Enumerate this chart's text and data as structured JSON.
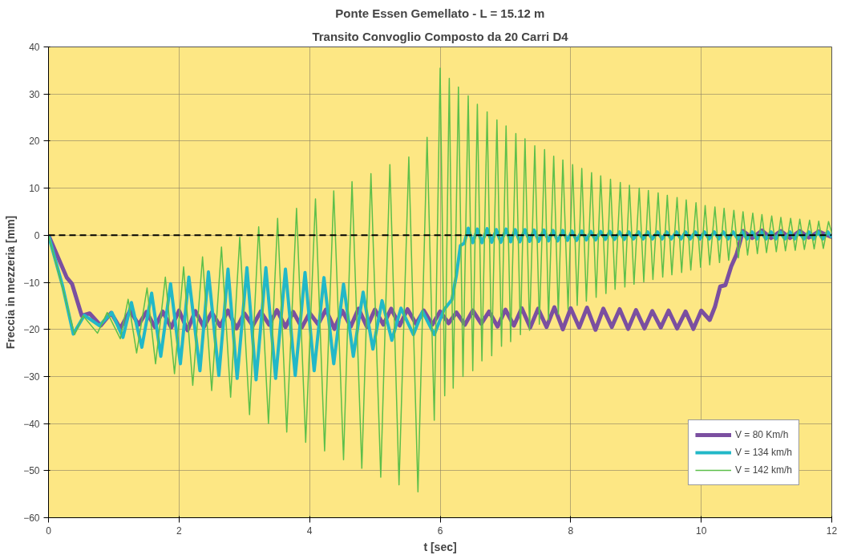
{
  "chart_data": {
    "type": "line",
    "title": "Ponte Essen Gemellato - L = 15.12 m",
    "subtitle": "Transito Convoglio Composto da 20 Carri D4",
    "xlabel": "t [sec]",
    "ylabel": "Freccia in mezzeria [mm]",
    "xlim": [
      0,
      12
    ],
    "ylim": [
      -60,
      40
    ],
    "xticks": [
      0,
      2,
      4,
      6,
      8,
      10,
      12
    ],
    "yticks": [
      -60,
      -50,
      -40,
      -30,
      -20,
      -10,
      0,
      10,
      20,
      30,
      40
    ],
    "grid": true,
    "legend": "bottom right",
    "line_style": "solid",
    "marker": "none",
    "ref_lines": [
      {
        "axis": "y",
        "value": 0,
        "label": null,
        "color": "#000000",
        "line_style": "dashed"
      }
    ],
    "series": [
      {
        "name": "V = 80 Km/h",
        "color": "#7b4fa0",
        "x": [
          0,
          0.28,
          0.36,
          0.51,
          0.63,
          0.8,
          0.96,
          1.1,
          1.25,
          1.38,
          1.5,
          1.63,
          1.75,
          1.88,
          2.0,
          2.13,
          2.25,
          2.38,
          2.5,
          2.63,
          2.75,
          2.88,
          3.0,
          3.13,
          3.25,
          3.38,
          3.5,
          3.63,
          3.75,
          3.88,
          4.0,
          4.13,
          4.25,
          4.38,
          4.5,
          4.63,
          4.75,
          4.88,
          5.0,
          5.13,
          5.25,
          5.38,
          5.5,
          5.63,
          5.75,
          5.88,
          6.0,
          6.13,
          6.25,
          6.38,
          6.5,
          6.63,
          6.75,
          6.88,
          7.0,
          7.13,
          7.25,
          7.38,
          7.5,
          7.63,
          7.75,
          7.88,
          8.0,
          8.13,
          8.25,
          8.38,
          8.5,
          8.63,
          8.75,
          8.88,
          9.0,
          9.13,
          9.25,
          9.38,
          9.5,
          9.63,
          9.76,
          9.88,
          10.0,
          10.13,
          10.21,
          10.29,
          10.37,
          10.46,
          10.54,
          10.64,
          10.78,
          10.93,
          11.07,
          11.22,
          11.36,
          11.51,
          11.65,
          11.8,
          12.0
        ],
        "values": [
          0,
          -9.0,
          -10.3,
          -17.1,
          -16.6,
          -19.2,
          -16.5,
          -19.8,
          -16.0,
          -19.0,
          -16.3,
          -19.5,
          -16.2,
          -19.6,
          -16.0,
          -20.2,
          -16.1,
          -19.5,
          -16.4,
          -19.3,
          -16.0,
          -19.8,
          -16.6,
          -19.2,
          -16.2,
          -19.0,
          -15.9,
          -19.5,
          -16.3,
          -19.6,
          -16.5,
          -18.9,
          -15.8,
          -19.9,
          -16.0,
          -19.4,
          -15.6,
          -19.5,
          -15.8,
          -19.0,
          -15.6,
          -19.2,
          -15.7,
          -18.8,
          -16.0,
          -19.0,
          -16.2,
          -18.7,
          -16.4,
          -19.0,
          -16.0,
          -18.8,
          -16.2,
          -19.4,
          -15.8,
          -19.2,
          -15.5,
          -19.6,
          -15.6,
          -19.5,
          -15.3,
          -20.0,
          -15.5,
          -19.6,
          -15.4,
          -20.1,
          -15.6,
          -19.5,
          -15.7,
          -19.9,
          -15.9,
          -19.8,
          -16.1,
          -19.6,
          -16.0,
          -19.8,
          -16.2,
          -19.9,
          -16.0,
          -18.0,
          -15.2,
          -10.9,
          -10.6,
          -6.6,
          -4.1,
          0.9,
          -0.6,
          1.0,
          -0.6,
          0.9,
          -0.6,
          0.9,
          -0.5,
          0.8,
          -0.4
        ]
      },
      {
        "name": "V = 134 km/h",
        "color": "#22b8c8",
        "x": [
          0,
          0.22,
          0.38,
          0.55,
          0.78,
          0.97,
          1.14,
          1.27,
          1.43,
          1.58,
          1.72,
          1.87,
          2.02,
          2.15,
          2.32,
          2.45,
          2.61,
          2.75,
          2.89,
          3.04,
          3.18,
          3.33,
          3.48,
          3.63,
          3.78,
          3.93,
          4.07,
          4.22,
          4.37,
          4.52,
          4.67,
          4.82,
          4.97,
          5.11,
          5.26,
          5.4,
          5.59,
          5.73,
          5.91,
          6.06,
          6.18,
          6.25,
          6.31,
          6.37,
          6.43,
          6.5,
          6.57,
          6.64,
          6.72,
          6.79,
          6.86,
          6.93,
          7.01,
          7.08,
          7.15,
          7.22,
          7.3,
          7.37,
          7.44,
          7.51,
          7.59,
          7.66,
          7.73,
          7.8,
          7.88,
          7.95,
          8.02,
          8.09,
          8.17,
          8.24,
          8.31,
          8.38,
          8.46,
          8.53,
          8.6,
          8.67,
          8.75,
          8.82,
          8.89,
          8.96,
          9.04,
          9.11,
          9.18,
          9.25,
          9.33,
          9.4,
          9.47,
          9.54,
          9.62,
          9.69,
          9.76,
          9.83,
          9.91,
          9.98,
          10.05,
          10.12,
          10.2,
          10.27,
          10.34,
          10.41,
          10.49,
          10.56,
          10.63,
          10.7,
          10.78,
          10.85,
          10.92,
          10.99,
          11.07,
          11.14,
          11.21,
          11.28,
          11.36,
          11.43,
          11.5,
          11.57,
          11.65,
          11.72,
          11.79,
          11.86,
          11.94,
          12.0
        ],
        "values": [
          0,
          -11.0,
          -21.0,
          -17.0,
          -19.2,
          -16.4,
          -21.7,
          -14.3,
          -23.8,
          -12.3,
          -25.7,
          -10.3,
          -27.3,
          -8.9,
          -28.8,
          -7.8,
          -29.8,
          -7.2,
          -30.4,
          -6.9,
          -30.7,
          -6.9,
          -30.4,
          -7.2,
          -29.8,
          -7.9,
          -28.8,
          -9.0,
          -27.3,
          -10.4,
          -25.7,
          -12.1,
          -24.2,
          -13.9,
          -22.3,
          -15.5,
          -21.1,
          -16.2,
          -21.1,
          -15.8,
          -13.7,
          -8.4,
          -2.2,
          -1.7,
          1.5,
          -1.6,
          1.3,
          -1.6,
          1.4,
          -1.5,
          1.2,
          -1.5,
          1.3,
          -1.4,
          1.2,
          -1.4,
          1.2,
          -1.3,
          1.1,
          -1.3,
          1.1,
          -1.2,
          1.0,
          -1.2,
          1.0,
          -1.1,
          0.9,
          -1.1,
          0.9,
          -1.0,
          0.8,
          -1.0,
          0.8,
          -0.9,
          0.8,
          -0.9,
          0.7,
          -0.9,
          0.7,
          -0.8,
          0.7,
          -0.8,
          0.7,
          -0.8,
          0.7,
          -0.8,
          0.7,
          -0.8,
          0.7,
          -0.8,
          0.7,
          -0.8,
          0.7,
          -0.8,
          0.7,
          -0.8,
          0.7,
          -0.8,
          0.7,
          -0.8,
          0.7,
          -0.8,
          0.7,
          -0.8,
          0.7,
          -0.8,
          0.7,
          -0.8,
          0.7,
          -0.8,
          0.7,
          -0.8,
          0.7,
          -0.8,
          0.7,
          -0.8,
          0.7,
          -0.8,
          0.7,
          -0.8,
          0.7,
          -0.5
        ]
      },
      {
        "name": "V = 142 km/h",
        "color": "#5cbf4a",
        "x": [
          0,
          0.22,
          0.4,
          0.53,
          0.75,
          0.9,
          1.1,
          1.22,
          1.35,
          1.51,
          1.64,
          1.79,
          1.93,
          2.07,
          2.21,
          2.36,
          2.5,
          2.65,
          2.79,
          2.93,
          3.08,
          3.22,
          3.37,
          3.51,
          3.65,
          3.8,
          3.94,
          4.09,
          4.23,
          4.37,
          4.52,
          4.65,
          4.8,
          4.94,
          5.09,
          5.23,
          5.37,
          5.52,
          5.66,
          5.8,
          5.91,
          6.0,
          6.07,
          6.14,
          6.2,
          6.28,
          6.35,
          6.43,
          6.5,
          6.57,
          6.64,
          6.72,
          6.79,
          6.87,
          6.94,
          7.01,
          7.08,
          7.16,
          7.23,
          7.3,
          7.37,
          7.45,
          7.52,
          7.6,
          7.66,
          7.74,
          7.81,
          7.88,
          7.96,
          8.03,
          8.1,
          8.17,
          8.24,
          8.32,
          8.39,
          8.46,
          8.54,
          8.61,
          8.68,
          8.76,
          8.83,
          8.9,
          8.97,
          9.05,
          9.12,
          9.19,
          9.26,
          9.34,
          9.41,
          9.48,
          9.55,
          9.63,
          9.7,
          9.77,
          9.84,
          9.92,
          9.99,
          10.06,
          10.13,
          10.21,
          10.28,
          10.35,
          10.42,
          10.5,
          10.57,
          10.64,
          10.71,
          10.79,
          10.86,
          10.93,
          11.0,
          11.08,
          11.15,
          11.22,
          11.29,
          11.37,
          11.44,
          11.51,
          11.58,
          11.66,
          11.73,
          11.8,
          11.87,
          11.95,
          12.0
        ],
        "values": [
          0,
          -11.5,
          -21.1,
          -17.1,
          -20.8,
          -16.4,
          -22.0,
          -13.6,
          -25.0,
          -11.2,
          -27.3,
          -8.9,
          -29.4,
          -6.7,
          -31.9,
          -4.6,
          -33.0,
          -2.5,
          -34.4,
          -0.4,
          -38.1,
          1.8,
          -40.0,
          3.6,
          -41.8,
          5.7,
          -44.0,
          7.7,
          -45.8,
          9.4,
          -47.7,
          11.4,
          -49.5,
          13.1,
          -51.4,
          15.0,
          -53.0,
          16.6,
          -54.5,
          20.8,
          -39.3,
          35.5,
          -34.1,
          33.3,
          -32.5,
          31.5,
          -30.0,
          29.6,
          -28.8,
          27.8,
          -26.7,
          26.2,
          -25.6,
          24.5,
          -23.6,
          23.2,
          -22.6,
          21.6,
          -21.1,
          20.5,
          -20.2,
          19.0,
          -18.9,
          18.2,
          -18.0,
          16.8,
          -16.8,
          16.0,
          -15.8,
          15.0,
          -14.9,
          14.2,
          -14.0,
          13.3,
          -13.2,
          12.6,
          -12.4,
          11.9,
          -11.5,
          11.2,
          -11.0,
          10.6,
          -10.4,
          10.0,
          -9.9,
          9.5,
          -9.4,
          9.0,
          -8.9,
          8.5,
          -8.4,
          8.0,
          -7.9,
          7.5,
          -7.4,
          6.9,
          -6.8,
          6.3,
          -6.3,
          6.0,
          -5.8,
          5.7,
          -5.3,
          5.3,
          -4.8,
          5.0,
          -4.2,
          4.7,
          -3.9,
          4.4,
          -3.7,
          4.1,
          -3.5,
          3.8,
          -3.3,
          3.6,
          -3.2,
          3.4,
          -3.0,
          3.2,
          -2.9,
          3.0,
          -2.8,
          2.9,
          0.5
        ]
      }
    ]
  }
}
